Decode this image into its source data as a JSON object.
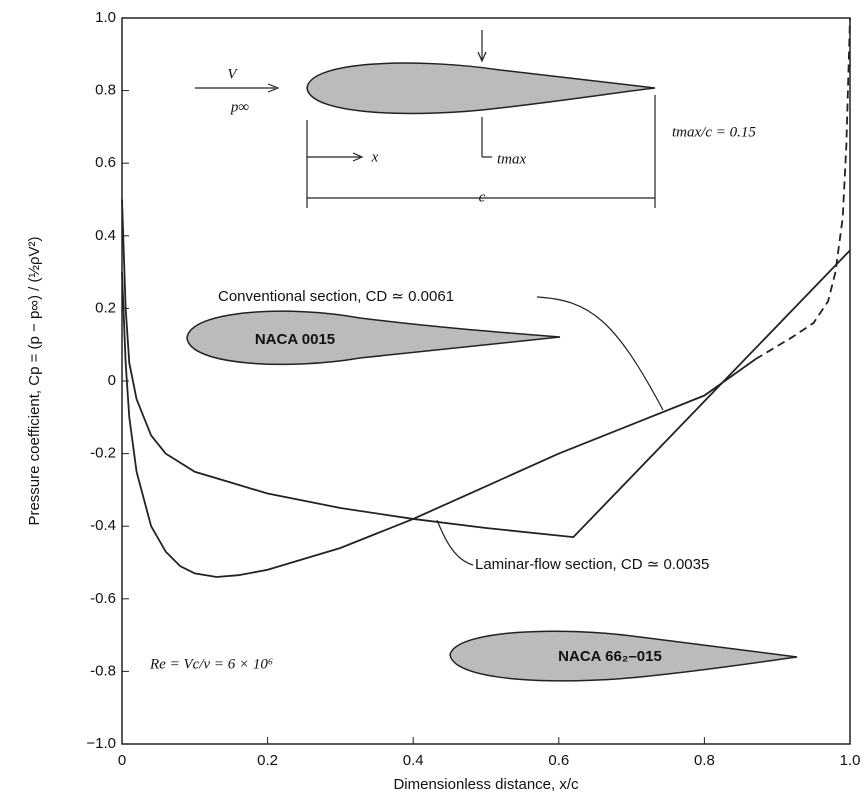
{
  "chart_data": {
    "type": "line",
    "xlabel": "Dimensionless distance, x/c",
    "ylabel": "Pressure coefficient, Cp = (p − p∞) / (½ρV²)",
    "xlim": [
      0,
      1
    ],
    "ylim": [
      -1,
      1
    ],
    "xticks": [
      0,
      0.2,
      0.4,
      0.6,
      0.8,
      {
        "value": 1,
        "label": "1.0"
      }
    ],
    "yticks": [
      {
        "value": -1,
        "label": "−1.0"
      },
      -0.8,
      -0.6,
      -0.4,
      -0.2,
      0,
      0.2,
      0.4,
      0.6,
      0.8,
      {
        "value": 1,
        "label": "1.0"
      }
    ],
    "series": [
      {
        "color": "#222222",
        "dashed": false,
        "x": [
          0,
          0.005,
          0.01,
          0.02,
          0.04,
          0.06,
          0.08,
          0.1,
          0.13,
          0.16,
          0.2,
          0.3,
          0.4,
          0.5,
          0.6,
          0.7,
          0.8,
          0.87
        ],
        "values": [
          0.3,
          0.05,
          -0.1,
          -0.25,
          -0.4,
          -0.47,
          -0.51,
          -0.53,
          -0.54,
          -0.535,
          -0.52,
          -0.46,
          -0.38,
          -0.29,
          -0.2,
          -0.12,
          -0.04,
          0.06
        ]
      },
      {
        "color": "#222222",
        "dashed": true,
        "x": [
          0.87,
          0.92,
          0.95,
          0.97,
          0.98,
          0.99,
          0.995,
          1
        ],
        "values": [
          0.06,
          0.12,
          0.16,
          0.22,
          0.3,
          0.45,
          0.65,
          1
        ]
      },
      {
        "color": "#222222",
        "dashed": false,
        "x": [
          0,
          0.005,
          0.01,
          0.02,
          0.04,
          0.06,
          0.1,
          0.15,
          0.2,
          0.3,
          0.4,
          0.5,
          0.62,
          1
        ],
        "values": [
          0.5,
          0.2,
          0.05,
          -0.05,
          -0.15,
          -0.2,
          -0.25,
          -0.28,
          -0.31,
          -0.35,
          -0.38,
          -0.405,
          -0.43,
          0.36
        ]
      }
    ],
    "annotations": [
      "Conventional section, CD ≃ 0.0061",
      "Laminar-flow section, CD ≃ 0.0035",
      "NACA 0015",
      "NACA 66₂–015",
      "Re = Vc/ν = 6 × 10⁶",
      "tmax/c = 0.15",
      "V",
      "p∞",
      "x",
      "tmax",
      "c"
    ]
  }
}
